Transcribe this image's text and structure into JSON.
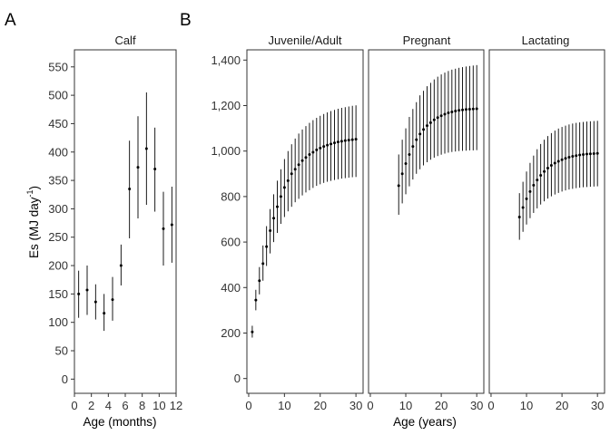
{
  "figure": {
    "panel_letters": [
      "A",
      "B"
    ],
    "ylabel_main": "Es (MJ day",
    "ylabel_sup": "-1",
    "ylabel_close": ")"
  },
  "chart_data": [
    {
      "type": "scatter",
      "panel": "A",
      "strip": "Calf",
      "xlabel": "Age (months)",
      "xlim": [
        0,
        12
      ],
      "ylim": [
        -25,
        580
      ],
      "xticks": [
        0,
        2,
        4,
        6,
        8,
        10,
        12
      ],
      "yticks": [
        0,
        50,
        100,
        150,
        200,
        250,
        300,
        350,
        400,
        450,
        500,
        550
      ],
      "ytick_labels": [
        "0",
        "50",
        "100",
        "150",
        "200",
        "250",
        "300",
        "350",
        "400",
        "450",
        "500",
        "550"
      ],
      "points": [
        {
          "x": 0.5,
          "y": 150,
          "lo": 108,
          "hi": 191
        },
        {
          "x": 1.5,
          "y": 157,
          "lo": 113,
          "hi": 200
        },
        {
          "x": 2.5,
          "y": 136,
          "lo": 105,
          "hi": 167
        },
        {
          "x": 3.5,
          "y": 116,
          "lo": 85,
          "hi": 150
        },
        {
          "x": 4.5,
          "y": 140,
          "lo": 103,
          "hi": 180
        },
        {
          "x": 5.5,
          "y": 200,
          "lo": 165,
          "hi": 237
        },
        {
          "x": 6.5,
          "y": 335,
          "lo": 248,
          "hi": 420
        },
        {
          "x": 7.5,
          "y": 373,
          "lo": 283,
          "hi": 463
        },
        {
          "x": 8.5,
          "y": 406,
          "lo": 307,
          "hi": 505
        },
        {
          "x": 9.5,
          "y": 370,
          "lo": 295,
          "hi": 443
        },
        {
          "x": 10.5,
          "y": 265,
          "lo": 200,
          "hi": 330
        },
        {
          "x": 11.5,
          "y": 272,
          "lo": 205,
          "hi": 339
        }
      ]
    },
    {
      "type": "scatter",
      "panel": "B",
      "strips": [
        "Juvenile/Adult",
        "Pregnant",
        "Lactating"
      ],
      "xlabel": "Age (years)",
      "xlim": [
        -0.5,
        32
      ],
      "ylim": [
        -65,
        1445
      ],
      "xticks": [
        0,
        10,
        20,
        30
      ],
      "yticks": [
        0,
        200,
        400,
        600,
        800,
        1000,
        1200,
        1400
      ],
      "ytick_labels": [
        "0",
        "200",
        "400",
        "600",
        "800",
        "1,000",
        "1,200",
        "1,400"
      ],
      "series": [
        {
          "name": "Juvenile/Adult",
          "x_start": 1,
          "x_end": 30,
          "y": [
            205,
            345,
            430,
            505,
            580,
            650,
            705,
            755,
            800,
            840,
            870,
            900,
            920,
            940,
            958,
            972,
            985,
            995,
            1005,
            1013,
            1020,
            1026,
            1031,
            1036,
            1040,
            1043,
            1046,
            1048,
            1050,
            1052
          ],
          "lo": [
            180,
            300,
            370,
            430,
            495,
            550,
            600,
            640,
            680,
            710,
            735,
            755,
            775,
            790,
            805,
            818,
            828,
            838,
            847,
            854,
            860,
            865,
            869,
            873,
            876,
            879,
            881,
            883,
            885,
            886
          ],
          "hi": [
            232,
            390,
            490,
            585,
            670,
            745,
            810,
            870,
            920,
            965,
            1000,
            1030,
            1055,
            1077,
            1095,
            1110,
            1124,
            1136,
            1146,
            1155,
            1163,
            1170,
            1176,
            1181,
            1186,
            1190,
            1193,
            1196,
            1199,
            1201
          ]
        },
        {
          "name": "Pregnant",
          "x_start": 8,
          "x_end": 30,
          "y": [
            848,
            900,
            945,
            985,
            1020,
            1050,
            1075,
            1095,
            1112,
            1125,
            1137,
            1147,
            1155,
            1162,
            1168,
            1172,
            1176,
            1179,
            1181,
            1183,
            1184,
            1185,
            1186
          ],
          "lo": [
            720,
            770,
            810,
            845,
            875,
            900,
            920,
            937,
            951,
            962,
            971,
            978,
            984,
            989,
            993,
            996,
            998,
            1000,
            1001,
            1002,
            1003,
            1003,
            1004
          ],
          "hi": [
            985,
            1050,
            1100,
            1150,
            1185,
            1215,
            1245,
            1265,
            1285,
            1300,
            1315,
            1327,
            1337,
            1345,
            1352,
            1358,
            1362,
            1366,
            1369,
            1372,
            1374,
            1376,
            1378
          ]
        },
        {
          "name": "Lactating",
          "x_start": 8,
          "x_end": 30,
          "y": [
            710,
            752,
            790,
            822,
            850,
            873,
            893,
            910,
            925,
            937,
            947,
            955,
            962,
            968,
            973,
            977,
            980,
            983,
            985,
            987,
            988,
            989,
            990
          ],
          "lo": [
            610,
            645,
            677,
            705,
            728,
            748,
            765,
            779,
            791,
            801,
            809,
            816,
            822,
            827,
            831,
            834,
            837,
            839,
            841,
            842,
            843,
            844,
            845
          ],
          "hi": [
            815,
            865,
            910,
            948,
            980,
            1008,
            1031,
            1050,
            1066,
            1079,
            1090,
            1099,
            1106,
            1112,
            1117,
            1121,
            1124,
            1126,
            1128,
            1130,
            1131,
            1132,
            1133
          ]
        }
      ]
    }
  ]
}
